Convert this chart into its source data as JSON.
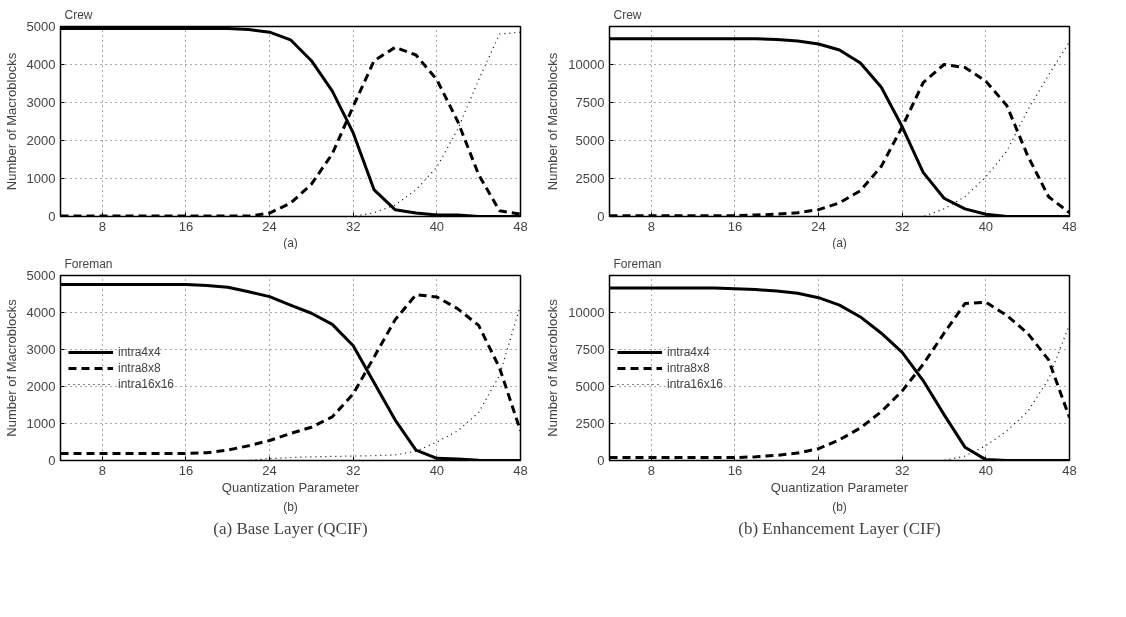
{
  "chart_data": [
    {
      "type": "line",
      "title": "Crew",
      "ylabel": "Number of Macroblocks",
      "annotations": [
        "(a)"
      ],
      "x": [
        4,
        6,
        8,
        10,
        12,
        14,
        16,
        18,
        20,
        22,
        24,
        26,
        28,
        30,
        32,
        34,
        36,
        38,
        40,
        42,
        44,
        46,
        48
      ],
      "xlim": [
        4,
        48
      ],
      "xticks": [
        8,
        16,
        24,
        32,
        40,
        48
      ],
      "ylim": [
        0,
        5000
      ],
      "yticks": [
        0,
        1000,
        2000,
        3000,
        4000,
        5000
      ],
      "grid": true,
      "legend": false,
      "series": [
        {
          "color": "#000000",
          "line_style": "solid",
          "values": [
            4950,
            4950,
            4950,
            4950,
            4950,
            4950,
            4950,
            4950,
            4950,
            4920,
            4850,
            4650,
            4100,
            3300,
            2200,
            700,
            180,
            90,
            40,
            40,
            0,
            0,
            0
          ]
        },
        {
          "color": "#000000",
          "line_style": "dashed",
          "values": [
            10,
            10,
            10,
            10,
            10,
            10,
            10,
            10,
            10,
            10,
            90,
            350,
            850,
            1650,
            2900,
            4100,
            4450,
            4250,
            3600,
            2500,
            1100,
            150,
            60
          ]
        },
        {
          "color": "#000000",
          "line_style": "dotted",
          "values": [
            0,
            0,
            0,
            0,
            0,
            0,
            0,
            0,
            0,
            0,
            0,
            0,
            0,
            0,
            0,
            100,
            300,
            700,
            1300,
            2300,
            3600,
            4800,
            4850
          ]
        }
      ]
    },
    {
      "type": "line",
      "title": "Crew",
      "ylabel": "Number of Macroblocks",
      "annotations": [
        "(a)"
      ],
      "x": [
        4,
        6,
        8,
        10,
        12,
        14,
        16,
        18,
        20,
        22,
        24,
        26,
        28,
        30,
        32,
        34,
        36,
        38,
        40,
        42,
        44,
        46,
        48
      ],
      "xlim": [
        4,
        48
      ],
      "xticks": [
        8,
        16,
        24,
        32,
        40,
        48
      ],
      "ylim": [
        0,
        12500
      ],
      "yticks": [
        0,
        2500,
        5000,
        7500,
        10000
      ],
      "grid": true,
      "legend": false,
      "series": [
        {
          "color": "#000000",
          "line_style": "solid",
          "values": [
            11700,
            11700,
            11700,
            11700,
            11700,
            11700,
            11700,
            11700,
            11650,
            11550,
            11350,
            10950,
            10100,
            8500,
            5900,
            2900,
            1200,
            500,
            150,
            0,
            0,
            0,
            0
          ]
        },
        {
          "color": "#000000",
          "line_style": "dashed",
          "values": [
            50,
            50,
            50,
            50,
            50,
            50,
            50,
            100,
            150,
            250,
            450,
            900,
            1700,
            3300,
            5900,
            8800,
            10000,
            9800,
            8900,
            7300,
            4000,
            1300,
            250
          ]
        },
        {
          "color": "#000000",
          "line_style": "dotted",
          "values": [
            0,
            0,
            0,
            0,
            0,
            0,
            0,
            0,
            0,
            0,
            0,
            0,
            0,
            0,
            0,
            0,
            500,
            1300,
            2600,
            4300,
            7000,
            9300,
            11500
          ]
        }
      ]
    },
    {
      "type": "line",
      "title": "Foreman",
      "xlabel": "Quantization Parameter",
      "ylabel": "Number of Macroblocks",
      "annotations": [
        "(b)",
        "(a) Base Layer (QCIF)"
      ],
      "x": [
        4,
        6,
        8,
        10,
        12,
        14,
        16,
        18,
        20,
        22,
        24,
        26,
        28,
        30,
        32,
        34,
        36,
        38,
        40,
        42,
        44,
        46,
        48
      ],
      "xlim": [
        4,
        48
      ],
      "xticks": [
        8,
        16,
        24,
        32,
        40,
        48
      ],
      "ylim": [
        0,
        5000
      ],
      "yticks": [
        0,
        1000,
        2000,
        3000,
        4000,
        5000
      ],
      "grid": true,
      "legend": "left",
      "series": [
        {
          "name": "intra4x4",
          "color": "#000000",
          "line_style": "solid",
          "values": [
            4760,
            4760,
            4760,
            4760,
            4760,
            4760,
            4760,
            4730,
            4680,
            4560,
            4430,
            4200,
            3980,
            3680,
            3100,
            2100,
            1100,
            280,
            60,
            40,
            10,
            0,
            0
          ]
        },
        {
          "name": "intra8x8",
          "color": "#000000",
          "line_style": "dashed",
          "values": [
            190,
            190,
            190,
            190,
            190,
            190,
            190,
            210,
            280,
            400,
            540,
            730,
            900,
            1180,
            1800,
            2800,
            3800,
            4480,
            4420,
            4100,
            3650,
            2500,
            800
          ]
        },
        {
          "name": "intra16x16",
          "color": "#000000",
          "line_style": "dotted",
          "values": [
            0,
            0,
            0,
            0,
            0,
            0,
            0,
            0,
            0,
            0,
            50,
            80,
            100,
            110,
            120,
            130,
            150,
            250,
            500,
            800,
            1300,
            2300,
            4200
          ]
        }
      ]
    },
    {
      "type": "line",
      "title": "Foreman",
      "xlabel": "Quantization Parameter",
      "ylabel": "Number of Macroblocks",
      "annotations": [
        "(b)",
        "(b) Enhancement Layer (CIF)"
      ],
      "x": [
        4,
        6,
        8,
        10,
        12,
        14,
        16,
        18,
        20,
        22,
        24,
        26,
        28,
        30,
        32,
        34,
        36,
        38,
        40,
        42,
        44,
        46,
        48
      ],
      "xlim": [
        4,
        48
      ],
      "xticks": [
        8,
        16,
        24,
        32,
        40,
        48
      ],
      "ylim": [
        0,
        12500
      ],
      "yticks": [
        0,
        2500,
        5000,
        7500,
        10000
      ],
      "grid": true,
      "legend": "left",
      "series": [
        {
          "name": "intra4x4",
          "color": "#000000",
          "line_style": "solid",
          "values": [
            11650,
            11650,
            11650,
            11650,
            11650,
            11650,
            11600,
            11550,
            11450,
            11300,
            11000,
            10500,
            9700,
            8600,
            7300,
            5400,
            3100,
            900,
            60,
            0,
            0,
            0,
            0
          ]
        },
        {
          "name": "intra8x8",
          "color": "#000000",
          "line_style": "dashed",
          "values": [
            200,
            200,
            200,
            200,
            200,
            200,
            200,
            250,
            350,
            500,
            800,
            1400,
            2200,
            3300,
            4700,
            6500,
            8600,
            10600,
            10700,
            9800,
            8600,
            6800,
            2900
          ]
        },
        {
          "name": "intra16x16",
          "color": "#000000",
          "line_style": "dotted",
          "values": [
            0,
            0,
            0,
            0,
            0,
            0,
            0,
            0,
            0,
            0,
            0,
            0,
            0,
            0,
            0,
            0,
            0,
            300,
            1000,
            2000,
            3300,
            5500,
            9200
          ]
        }
      ]
    }
  ]
}
